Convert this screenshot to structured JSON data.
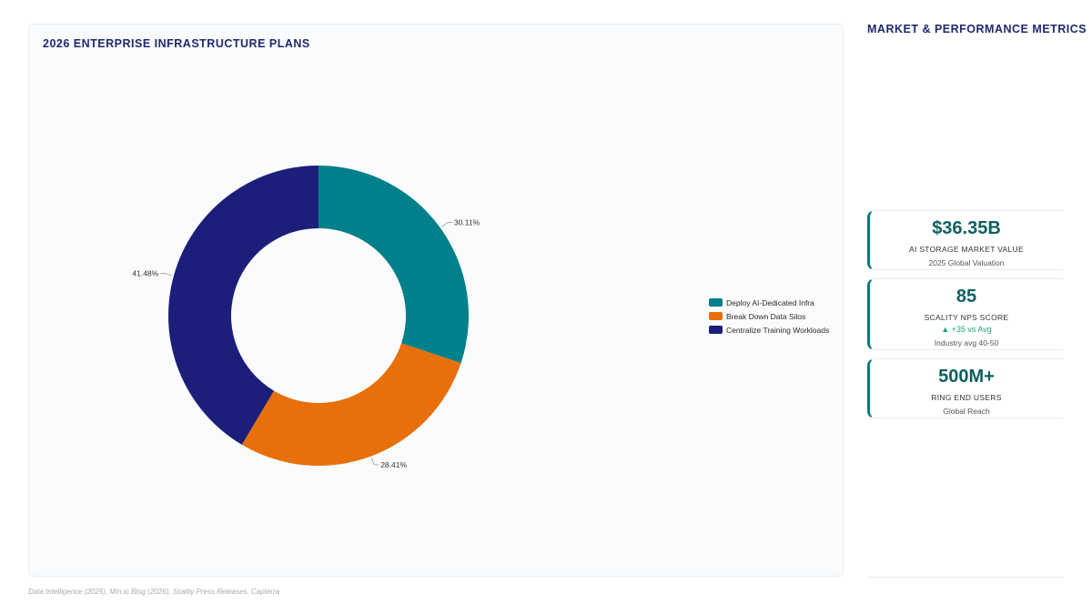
{
  "chart_data": {
    "type": "pie",
    "title": "2026 ENTERPRISE INFRASTRUCTURE PLANS",
    "categories": [
      "Deploy AI-Dedicated Infra",
      "Break Down Data Silos",
      "Centralize Training Workloads"
    ],
    "values": [
      30.11,
      28.41,
      41.48
    ],
    "value_labels": [
      "30.11%",
      "28.41%",
      "41.48%"
    ],
    "colors": [
      "#00808a",
      "#e8700c",
      "#1b1f7a"
    ],
    "donut": true,
    "legend_position": "right"
  },
  "right_panel": {
    "title": "MARKET & PERFORMANCE METRICS",
    "metrics": [
      {
        "value": "$36.35B",
        "label": "AI STORAGE MARKET VALUE",
        "sub": "2025 Global Valuation"
      },
      {
        "value": "85",
        "label": "SCALITY NPS SCORE",
        "delta": "▲ +35 vs Avg",
        "sub": "Industry avg 40-50"
      },
      {
        "value": "500M+",
        "label": "RING END USERS",
        "sub": "Global Reach"
      }
    ]
  },
  "footer": {
    "source": "Data Intelligence (2025), Min.io Blog (2026), Scality Press Releases, Capterra"
  }
}
